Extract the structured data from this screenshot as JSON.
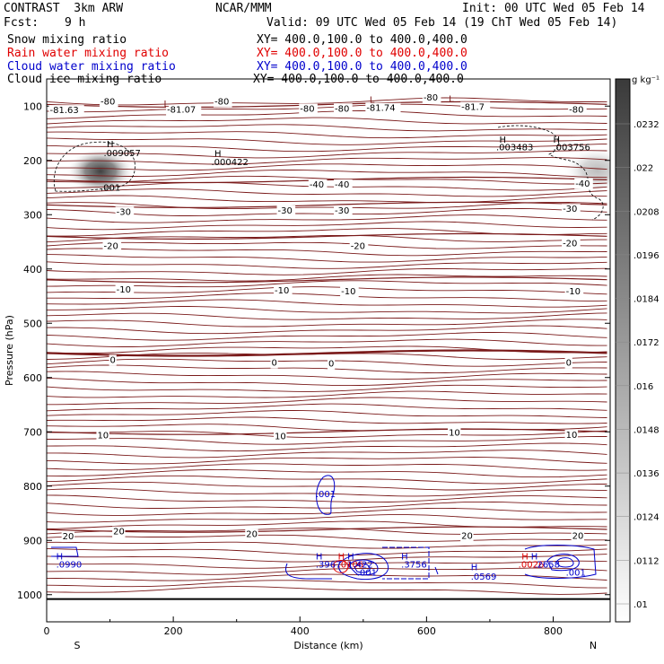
{
  "header": {
    "model": "CONTRAST  3km ARW",
    "org": "NCAR/MMM",
    "init": "Init: 00 UTC Wed 05 Feb 14",
    "fcst_label": "Fcst:",
    "fcst_value": "9 h",
    "valid": "Valid: 09 UTC Wed 05 Feb 14 (19 ChT Wed 05 Feb 14)"
  },
  "fields": [
    {
      "name": "Snow mixing ratio",
      "xy": "XY= 400.0,100.0 to 400.0,400.0",
      "color": "#000000"
    },
    {
      "name": "Rain water mixing ratio",
      "xy": "XY= 400.0,100.0 to 400.0,400.0",
      "color": "#e00000"
    },
    {
      "name": "Cloud water mixing ratio",
      "xy": "XY= 400.0,100.0 to 400.0,400.0",
      "color": "#0000cc"
    },
    {
      "name": "Cloud ice mixing ratio",
      "xy": "XY= 400.0,100.0 to 400.0,400.0",
      "color": "#000000"
    }
  ],
  "colorbar": {
    "unit": "g kg⁻¹",
    "ticks": [
      ".0232",
      ".022",
      ".0208",
      ".0196",
      ".0184",
      ".0172",
      ".016",
      ".0148",
      ".0136",
      ".0124",
      ".0112",
      ".01"
    ]
  },
  "colors": {
    "temperature": "#7a1a1a",
    "snow": "#404040",
    "rain": "#e00000",
    "cloud_water": "#0000cc",
    "cloud_ice": "#000000"
  },
  "chart_data": {
    "type": "contour",
    "xlabel": "Distance (km)",
    "ylabel": "Pressure (hPa)",
    "xlim": [
      0,
      890
    ],
    "ylim": [
      1050,
      50
    ],
    "x_ticks": [
      0,
      200,
      400,
      600,
      800
    ],
    "y_ticks": [
      100,
      200,
      300,
      400,
      500,
      600,
      700,
      800,
      900,
      1000
    ],
    "x_ends": {
      "left": "S",
      "right": "N"
    },
    "temperature_isotherms": [
      {
        "value": -80,
        "p": 97
      },
      {
        "value": -40,
        "p": 236
      },
      {
        "value": -30,
        "p": 282
      },
      {
        "value": -20,
        "p": 340
      },
      {
        "value": -10,
        "p": 420
      },
      {
        "value": 0,
        "p": 555
      },
      {
        "value": 10,
        "p": 700
      },
      {
        "value": 20,
        "p": 880
      }
    ],
    "temperature_labels": [
      {
        "text": "-80",
        "x": 85,
        "p": 97
      },
      {
        "text": "-80",
        "x": 265,
        "p": 97
      },
      {
        "text": "-80",
        "x": 400,
        "p": 110
      },
      {
        "text": "-80",
        "x": 455,
        "p": 110
      },
      {
        "text": "-80",
        "x": 595,
        "p": 90
      },
      {
        "text": "-80",
        "x": 825,
        "p": 112
      },
      {
        "text": "-81.63",
        "x": 5,
        "p": 113
      },
      {
        "text": "-81.07",
        "x": 190,
        "p": 112
      },
      {
        "text": "-81.74",
        "x": 505,
        "p": 109
      },
      {
        "text": "-81.7",
        "x": 655,
        "p": 107
      },
      {
        "text": "-40",
        "x": 415,
        "p": 250
      },
      {
        "text": "-40",
        "x": 455,
        "p": 250
      },
      {
        "text": "-40",
        "x": 835,
        "p": 248
      },
      {
        "text": "-30",
        "x": 110,
        "p": 300
      },
      {
        "text": "-30",
        "x": 365,
        "p": 298
      },
      {
        "text": "-30",
        "x": 455,
        "p": 298
      },
      {
        "text": "-30",
        "x": 815,
        "p": 295
      },
      {
        "text": "-20",
        "x": 90,
        "p": 363
      },
      {
        "text": "-20",
        "x": 480,
        "p": 363
      },
      {
        "text": "-20",
        "x": 815,
        "p": 358
      },
      {
        "text": "-10",
        "x": 110,
        "p": 443
      },
      {
        "text": "-10",
        "x": 360,
        "p": 445
      },
      {
        "text": "-10",
        "x": 465,
        "p": 447
      },
      {
        "text": "-10",
        "x": 820,
        "p": 447
      },
      {
        "text": "0",
        "x": 100,
        "p": 573
      },
      {
        "text": "0",
        "x": 355,
        "p": 578
      },
      {
        "text": "0",
        "x": 445,
        "p": 580
      },
      {
        "text": "0",
        "x": 820,
        "p": 578
      },
      {
        "text": "10",
        "x": 80,
        "p": 712
      },
      {
        "text": "10",
        "x": 360,
        "p": 714
      },
      {
        "text": "10",
        "x": 635,
        "p": 707
      },
      {
        "text": "10",
        "x": 820,
        "p": 711
      },
      {
        "text": "20",
        "x": 25,
        "p": 898
      },
      {
        "text": "20",
        "x": 105,
        "p": 889
      },
      {
        "text": "20",
        "x": 315,
        "p": 894
      },
      {
        "text": "20",
        "x": 655,
        "p": 897
      },
      {
        "text": "20",
        "x": 830,
        "p": 897
      }
    ],
    "extrema_markers": [
      {
        "text": "L",
        "x": 185,
        "p": 101,
        "color": "#7a1a1a"
      },
      {
        "text": "L",
        "x": 510,
        "p": 94,
        "color": "#7a1a1a"
      },
      {
        "text": "L",
        "x": 635,
        "p": 92,
        "color": "#7a1a1a"
      },
      {
        "text": "H",
        "x": 95,
        "p": 176,
        "color": "#000000"
      },
      {
        "text": ".009057",
        "x": 90,
        "p": 192,
        "color": "#000000"
      },
      {
        "text": "H",
        "x": 265,
        "p": 193,
        "color": "#000000"
      },
      {
        "text": ".000422",
        "x": 260,
        "p": 209,
        "color": "#000000"
      },
      {
        "text": ".001",
        "x": 85,
        "p": 256,
        "color": "#000000"
      },
      {
        "text": "H",
        "x": 715,
        "p": 167,
        "color": "#000000"
      },
      {
        "text": ".003483",
        "x": 710,
        "p": 181,
        "color": "#000000"
      },
      {
        "text": "H",
        "x": 800,
        "p": 167,
        "color": "#000000"
      },
      {
        "text": ".003756",
        "x": 800,
        "p": 181,
        "color": "#000000"
      },
      {
        "text": ".001",
        "x": 425,
        "p": 820,
        "color": "#0000cc"
      },
      {
        "text": "H",
        "x": 15,
        "p": 935,
        "color": "#0000cc"
      },
      {
        "text": ".0990",
        "x": 15,
        "p": 950,
        "color": "#0000cc"
      },
      {
        "text": "H",
        "x": 425,
        "p": 935,
        "color": "#0000cc"
      },
      {
        "text": ".3967",
        "x": 425,
        "p": 950,
        "color": "#0000cc"
      },
      {
        "text": "H",
        "x": 460,
        "p": 935,
        "color": "#e00000"
      },
      {
        "text": ".0106",
        "x": 460,
        "p": 950,
        "color": "#e00000"
      },
      {
        "text": "H",
        "x": 475,
        "p": 935,
        "color": "#0000cc"
      },
      {
        "text": "1.422",
        "x": 475,
        "p": 950,
        "color": "#0000cc"
      },
      {
        "text": ".001",
        "x": 490,
        "p": 965,
        "color": "#0000cc"
      },
      {
        "text": "H",
        "x": 560,
        "p": 935,
        "color": "#0000cc"
      },
      {
        "text": ".3756",
        "x": 560,
        "p": 950,
        "color": "#0000cc"
      },
      {
        "text": "H",
        "x": 670,
        "p": 955,
        "color": "#0000cc"
      },
      {
        "text": ".0569",
        "x": 670,
        "p": 972,
        "color": "#0000cc"
      },
      {
        "text": "H",
        "x": 750,
        "p": 935,
        "color": "#e00000"
      },
      {
        "text": ".0026",
        "x": 745,
        "p": 950,
        "color": "#e00000"
      },
      {
        "text": "H",
        "x": 765,
        "p": 935,
        "color": "#0000cc"
      },
      {
        "text": ".2658",
        "x": 770,
        "p": 950,
        "color": "#0000cc"
      },
      {
        "text": ".001",
        "x": 820,
        "p": 965,
        "color": "#0000cc"
      }
    ],
    "snow_blobs": [
      {
        "x": 85,
        "p": 220,
        "intensity": 1.0
      },
      {
        "x": 870,
        "p": 218,
        "intensity": 0.35
      }
    ]
  }
}
